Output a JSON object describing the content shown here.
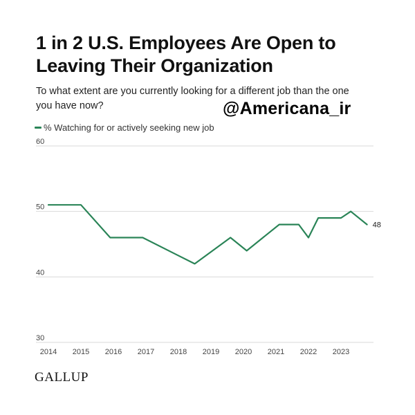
{
  "header": {
    "title": "1 in 2 U.S. Employees Are Open to Leaving Their Organization",
    "subtitle": "To what extent are you currently looking for a different job than the one you have now?",
    "watermark": "@Americana_ir"
  },
  "footer": {
    "logo": "GALLUP"
  },
  "colors": {
    "series": "#2a8457",
    "grid": "#d9d9d9",
    "axis_text": "#444444"
  },
  "chart_data": {
    "type": "line",
    "title": "1 in 2 U.S. Employees Are Open to Leaving Their Organization",
    "xlabel": "",
    "ylabel": "",
    "xlim": [
      2014,
      2024
    ],
    "ylim": [
      30,
      60
    ],
    "y_ticks": [
      30,
      40,
      50,
      60
    ],
    "x_ticks": [
      2014,
      2015,
      2016,
      2017,
      2018,
      2019,
      2020,
      2021,
      2022,
      2023
    ],
    "grid": true,
    "legend_position": "top-left",
    "series": [
      {
        "name": "% Watching for or actively seeking new job",
        "x": [
          2014,
          2015,
          2015.9,
          2016.9,
          2018.5,
          2019.6,
          2020.1,
          2021.1,
          2021.7,
          2022,
          2022.3,
          2023,
          2023.3,
          2023.8
        ],
        "y": [
          51,
          51,
          46,
          46,
          42,
          46,
          44,
          48,
          48,
          46,
          49,
          49,
          50,
          48
        ]
      }
    ],
    "annotations": [
      {
        "x": 2023.8,
        "y": 48,
        "text": "48"
      }
    ]
  }
}
